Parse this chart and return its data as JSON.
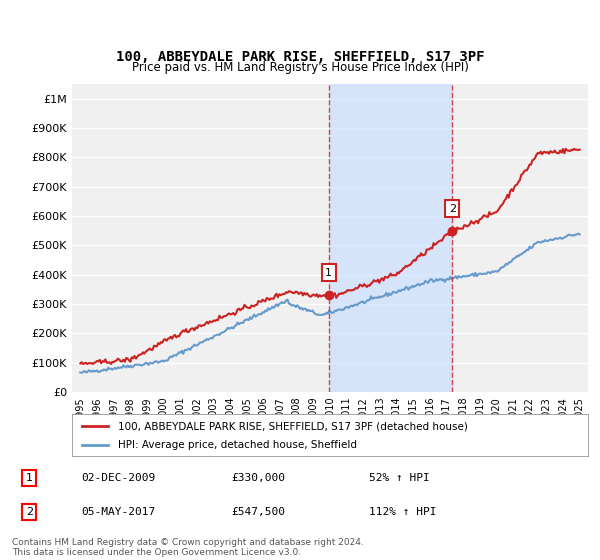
{
  "title": "100, ABBEYDALE PARK RISE, SHEFFIELD, S17 3PF",
  "subtitle": "Price paid vs. HM Land Registry's House Price Index (HPI)",
  "ylabel": "",
  "ylim": [
    0,
    1050000
  ],
  "yticks": [
    0,
    100000,
    200000,
    300000,
    400000,
    500000,
    600000,
    700000,
    800000,
    900000,
    1000000
  ],
  "ytick_labels": [
    "£0",
    "£100K",
    "£200K",
    "£300K",
    "£400K",
    "£500K",
    "£600K",
    "£700K",
    "£800K",
    "£900K",
    "£1M"
  ],
  "background_color": "#ffffff",
  "plot_bg_color": "#f0f0f0",
  "grid_color": "#ffffff",
  "hpi_color": "#6699cc",
  "price_color": "#cc2222",
  "shade_color": "#cce0ff",
  "marker1_x": 2009.92,
  "marker1_y": 330000,
  "marker2_x": 2017.35,
  "marker2_y": 547500,
  "marker1_label": "1",
  "marker2_label": "2",
  "vline1_x": 2009.92,
  "vline2_x": 2017.35,
  "legend_price": "100, ABBEYDALE PARK RISE, SHEFFIELD, S17 3PF (detached house)",
  "legend_hpi": "HPI: Average price, detached house, Sheffield",
  "note1_label": "1",
  "note1_date": "02-DEC-2009",
  "note1_price": "£330,000",
  "note1_pct": "52% ↑ HPI",
  "note2_label": "2",
  "note2_date": "05-MAY-2017",
  "note2_price": "£547,500",
  "note2_pct": "112% ↑ HPI",
  "footer": "Contains HM Land Registry data © Crown copyright and database right 2024.\nThis data is licensed under the Open Government Licence v3.0.",
  "xmin": 1994.5,
  "xmax": 2025.5
}
